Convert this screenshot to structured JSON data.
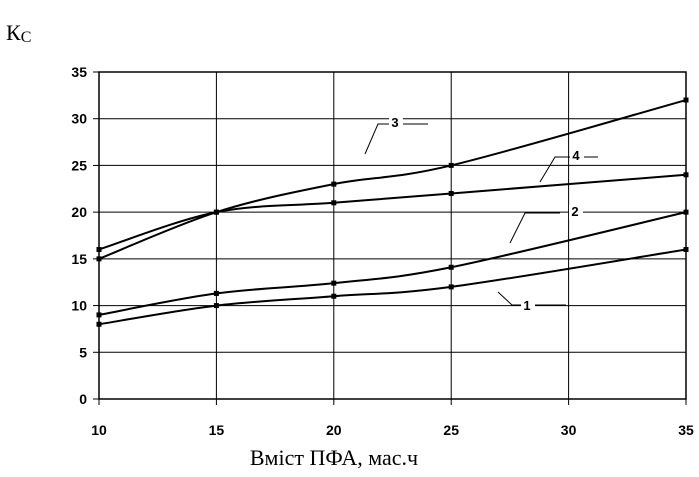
{
  "chart_data": {
    "type": "line",
    "ylabel_main": "К",
    "ylabel_sub": "С",
    "xlabel": "Вміст  ПФА, мас.ч",
    "x_ticks": [
      10,
      15,
      20,
      25,
      30,
      35
    ],
    "y_ticks": [
      0,
      5,
      10,
      15,
      20,
      25,
      30,
      35
    ],
    "xlim": [
      10,
      35
    ],
    "ylim": [
      0,
      35
    ],
    "grid": true,
    "series": [
      {
        "name": "1",
        "x": [
          10,
          15,
          20,
          25,
          35
        ],
        "values": [
          8,
          10,
          11,
          12,
          16
        ]
      },
      {
        "name": "2",
        "x": [
          10,
          15,
          20,
          25,
          35
        ],
        "values": [
          9,
          11.3,
          12.4,
          14.1,
          20
        ]
      },
      {
        "name": "3",
        "x": [
          10,
          15,
          20,
          25,
          35
        ],
        "values": [
          15,
          20,
          23,
          25,
          32
        ]
      },
      {
        "name": "4",
        "x": [
          10,
          15,
          20,
          25,
          35
        ],
        "values": [
          16,
          20,
          21,
          22,
          24
        ]
      }
    ]
  }
}
